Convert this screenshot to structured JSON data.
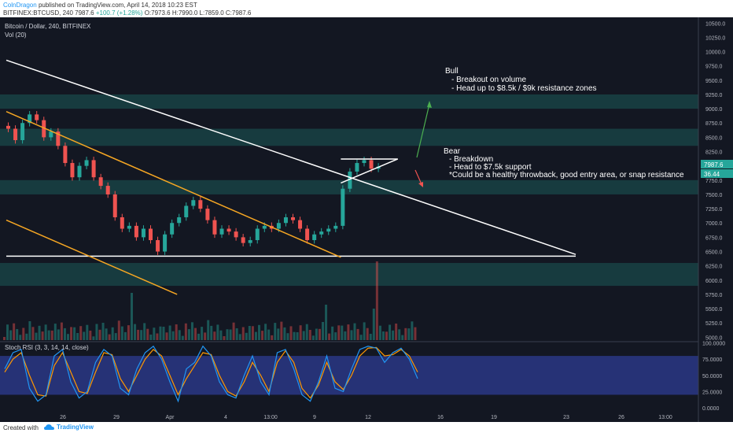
{
  "header": {
    "author": "ColnDragon",
    "published_text": "published on TradingView.com, April 14, 2018 10:23 EST",
    "symbol": "BITFINEX:BTCUSD, 240",
    "last": "7987.6",
    "change": "+100.7 (+1.28%)",
    "ohlc": "O:7973.6 H:7990.0 L:7859.0 C:7987.6"
  },
  "legend": {
    "title": "Bitcoin / Dollar, 240, BITFINEX",
    "vol": "Vol (20)",
    "stoch": "Stoch RSI (3, 3, 14, 14, close)"
  },
  "price_tags": {
    "last": "7987.6",
    "vol": "36.44"
  },
  "annotations": {
    "bull_title": "Bull",
    "bull_line1": "- Breakout on volume",
    "bull_line2": "- Head up to $8.5k / $9k resistance zones",
    "bear_title": "Bear",
    "bear_line1": "- Breakdown",
    "bear_line2": "- Head to $7.5k support",
    "bear_line3": "*Could be a healthy throwback, good entry area, or snap resistance"
  },
  "footer": {
    "created": "Created with",
    "brand": "TradingView"
  },
  "colors": {
    "background": "#131722",
    "candle_up": "#26a69a",
    "candle_down": "#ef5350",
    "zone": "#1c5a57",
    "trendline": "#ffffff",
    "channel": "#f5a623",
    "bull_arrow": "#4caf50",
    "bear_arrow": "#ef5350",
    "stoch_k": "#2196f3",
    "stoch_d": "#ff9800",
    "stoch_band": "#2c3a8c"
  },
  "chart_data": {
    "type": "candlestick",
    "price_axis": {
      "ticks": [
        "10500.0",
        "10250.0",
        "10000.0",
        "9750.0",
        "9500.0",
        "9250.0",
        "9000.0",
        "8750.0",
        "8500.0",
        "8250.0",
        "8000.0",
        "7750.0",
        "7500.0",
        "7250.0",
        "7000.0",
        "6750.0",
        "6500.0",
        "6250.0",
        "6000.0",
        "5750.0",
        "5500.0",
        "5250.0",
        "5000.0"
      ],
      "range": [
        4950,
        10600
      ]
    },
    "time_axis": {
      "ticks": [
        "26",
        "29",
        "Apr",
        "4",
        "13:00",
        "9",
        "12",
        "16",
        "19",
        "23",
        "26",
        "13:00"
      ]
    },
    "stoch_axis": {
      "ticks": [
        "100.0000",
        "75.0000",
        "50.0000",
        "25.0000",
        "0.0000"
      ],
      "range": [
        -5,
        102
      ]
    },
    "resistance_zones": [
      [
        9000,
        9250
      ],
      [
        8350,
        8650
      ],
      [
        7500,
        7750
      ],
      [
        5900,
        6300
      ]
    ],
    "price_series": [
      {
        "t": 0,
        "o": 8700,
        "c": 8650
      },
      {
        "t": 1,
        "o": 8650,
        "c": 8450
      },
      {
        "t": 2,
        "o": 8450,
        "c": 8750
      },
      {
        "t": 3,
        "o": 8750,
        "c": 8900
      },
      {
        "t": 4,
        "o": 8900,
        "c": 8800
      },
      {
        "t": 5,
        "o": 8800,
        "c": 8500
      },
      {
        "t": 6,
        "o": 8500,
        "c": 8600
      },
      {
        "t": 7,
        "o": 8600,
        "c": 8350
      },
      {
        "t": 8,
        "o": 8350,
        "c": 8050
      },
      {
        "t": 9,
        "o": 8050,
        "c": 7800
      },
      {
        "t": 10,
        "o": 7800,
        "c": 8000
      },
      {
        "t": 11,
        "o": 8000,
        "c": 8100
      },
      {
        "t": 12,
        "o": 8100,
        "c": 7800
      },
      {
        "t": 13,
        "o": 7800,
        "c": 7650
      },
      {
        "t": 14,
        "o": 7650,
        "c": 7500
      },
      {
        "t": 15,
        "o": 7500,
        "c": 7100
      },
      {
        "t": 16,
        "o": 7100,
        "c": 6900
      },
      {
        "t": 17,
        "o": 6900,
        "c": 6950
      },
      {
        "t": 18,
        "o": 6950,
        "c": 6750
      },
      {
        "t": 19,
        "o": 6750,
        "c": 6900
      },
      {
        "t": 20,
        "o": 6900,
        "c": 6700
      },
      {
        "t": 21,
        "o": 6700,
        "c": 6500
      },
      {
        "t": 22,
        "o": 6500,
        "c": 6800
      },
      {
        "t": 23,
        "o": 6800,
        "c": 7000
      },
      {
        "t": 24,
        "o": 7000,
        "c": 7100
      },
      {
        "t": 25,
        "o": 7100,
        "c": 7300
      },
      {
        "t": 26,
        "o": 7300,
        "c": 7400
      },
      {
        "t": 27,
        "o": 7400,
        "c": 7250
      },
      {
        "t": 28,
        "o": 7250,
        "c": 7050
      },
      {
        "t": 29,
        "o": 7050,
        "c": 6800
      },
      {
        "t": 30,
        "o": 6800,
        "c": 6900
      },
      {
        "t": 31,
        "o": 6900,
        "c": 6850
      },
      {
        "t": 32,
        "o": 6850,
        "c": 6750
      },
      {
        "t": 33,
        "o": 6750,
        "c": 6650
      },
      {
        "t": 34,
        "o": 6650,
        "c": 6700
      },
      {
        "t": 35,
        "o": 6700,
        "c": 6900
      },
      {
        "t": 36,
        "o": 6900,
        "c": 6950
      },
      {
        "t": 37,
        "o": 6950,
        "c": 6900
      },
      {
        "t": 38,
        "o": 6900,
        "c": 7000
      },
      {
        "t": 39,
        "o": 7000,
        "c": 7100
      },
      {
        "t": 40,
        "o": 7100,
        "c": 7050
      },
      {
        "t": 41,
        "o": 7050,
        "c": 6900
      },
      {
        "t": 42,
        "o": 6900,
        "c": 6700
      },
      {
        "t": 43,
        "o": 6700,
        "c": 6800
      },
      {
        "t": 44,
        "o": 6800,
        "c": 6850
      },
      {
        "t": 45,
        "o": 6850,
        "c": 6900
      },
      {
        "t": 46,
        "o": 6900,
        "c": 6950
      },
      {
        "t": 47,
        "o": 6950,
        "c": 7600
      },
      {
        "t": 48,
        "o": 7600,
        "c": 7900
      },
      {
        "t": 49,
        "o": 7900,
        "c": 8050
      },
      {
        "t": 50,
        "o": 8050,
        "c": 8100
      },
      {
        "t": 51,
        "o": 8100,
        "c": 7950
      },
      {
        "t": 52,
        "o": 7950,
        "c": 7988
      }
    ],
    "trendlines": [
      {
        "name": "descending resistance",
        "from": [
          0,
          9850
        ],
        "to": [
          80,
          6450
        ],
        "color": "#ffffff"
      },
      {
        "name": "support",
        "from": [
          0,
          6420
        ],
        "to": [
          80,
          6420
        ],
        "color": "#ffffff"
      },
      {
        "name": "channel upper",
        "from": [
          0,
          8950
        ],
        "to": [
          47,
          6400
        ],
        "color": "#f5a623"
      },
      {
        "name": "channel lower",
        "from": [
          0,
          7050
        ],
        "to": [
          24,
          5750
        ],
        "color": "#f5a623"
      },
      {
        "name": "triangle top",
        "from": [
          47,
          8120
        ],
        "to": [
          55,
          8120
        ],
        "color": "#ffffff"
      },
      {
        "name": "triangle bottom",
        "from": [
          47,
          7700
        ],
        "to": [
          55,
          8120
        ],
        "color": "#ffffff"
      }
    ],
    "stoch_k": [
      60,
      85,
      90,
      30,
      10,
      20,
      80,
      90,
      40,
      15,
      25,
      70,
      90,
      80,
      30,
      20,
      60,
      85,
      95,
      75,
      40,
      10,
      60,
      70,
      95,
      80,
      40,
      20,
      15,
      50,
      80,
      40,
      20,
      85,
      90,
      60,
      20,
      10,
      40,
      80,
      30,
      25,
      60,
      90,
      95,
      92,
      70,
      85,
      92,
      75,
      45
    ],
    "stoch_d": [
      55,
      75,
      85,
      50,
      20,
      18,
      65,
      85,
      55,
      25,
      22,
      55,
      85,
      82,
      45,
      25,
      50,
      75,
      90,
      80,
      50,
      20,
      45,
      65,
      85,
      82,
      50,
      25,
      18,
      40,
      70,
      50,
      25,
      70,
      88,
      70,
      30,
      15,
      35,
      70,
      40,
      28,
      50,
      80,
      92,
      93,
      80,
      82,
      90,
      80,
      55
    ]
  }
}
